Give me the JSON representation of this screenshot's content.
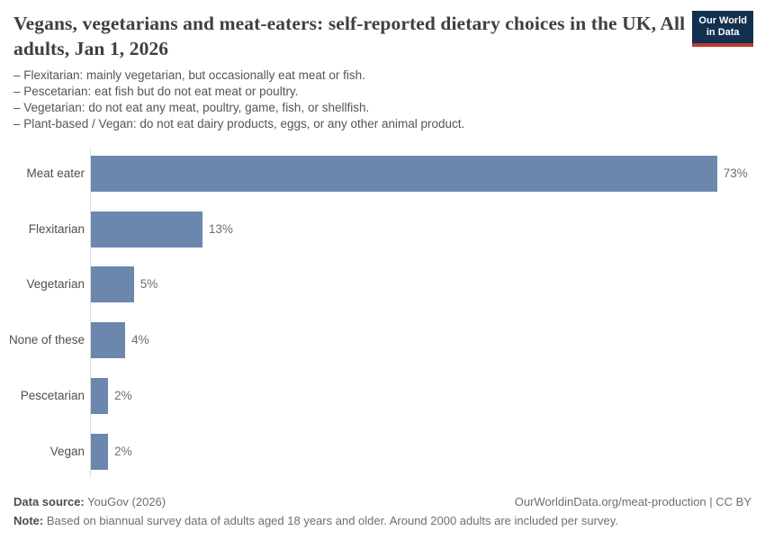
{
  "header": {
    "title": "Vegans, vegetarians and meat-eaters: self-reported dietary choices in the UK, All adults, Jan 1, 2026",
    "subtitle_lines": [
      "– Flexitarian: mainly vegetarian, but occasionally eat meat or fish.",
      "– Pescetarian: eat fish but do not eat meat or poultry.",
      "– Vegetarian: do not eat any meat, poultry, game, fish, or shellfish.",
      "– Plant-based / Vegan: do not eat dairy products, eggs, or any other animal product."
    ],
    "logo": {
      "line1": "Our World",
      "line2": "in Data"
    }
  },
  "chart_data": {
    "type": "bar",
    "orientation": "horizontal",
    "title": "Vegans, vegetarians and meat-eaters: self-reported dietary choices in the UK, All adults, Jan 1, 2026",
    "categories": [
      "Meat eater",
      "Flexitarian",
      "Vegetarian",
      "None of these",
      "Pescetarian",
      "Vegan"
    ],
    "values": [
      73,
      13,
      5,
      4,
      2,
      2
    ],
    "value_labels": [
      "73%",
      "13%",
      "5%",
      "4%",
      "2%",
      "2%"
    ],
    "unit": "%",
    "xlim": [
      0,
      78
    ],
    "grid": false,
    "legend": "none",
    "bar_color": "#6b87ae"
  },
  "footer": {
    "datasource_label": "Data source:",
    "datasource_value": "YouGov (2026)",
    "citation": "OurWorldinData.org/meat-production | CC BY",
    "note_label": "Note:",
    "note_value": "Based on biannual survey data of adults aged 18 years and older. Around 2000 adults are included per survey."
  },
  "colors": {
    "bar": "#6b87ae",
    "logo_background": "#12304f",
    "logo_accent": "#bc3a31",
    "axis_line": "#dddddd",
    "title_text": "#3f3f3f",
    "subtitle_text": "#555555",
    "footer_text": "#6e6e6e"
  }
}
